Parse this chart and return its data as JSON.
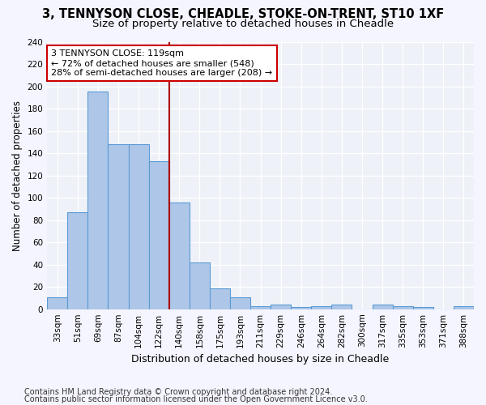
{
  "title1": "3, TENNYSON CLOSE, CHEADLE, STOKE-ON-TRENT, ST10 1XF",
  "title2": "Size of property relative to detached houses in Cheadle",
  "xlabel": "Distribution of detached houses by size in Cheadle",
  "ylabel": "Number of detached properties",
  "categories": [
    "33sqm",
    "51sqm",
    "69sqm",
    "87sqm",
    "104sqm",
    "122sqm",
    "140sqm",
    "158sqm",
    "175sqm",
    "193sqm",
    "211sqm",
    "229sqm",
    "246sqm",
    "264sqm",
    "282sqm",
    "300sqm",
    "317sqm",
    "335sqm",
    "353sqm",
    "371sqm",
    "388sqm"
  ],
  "values": [
    11,
    87,
    195,
    148,
    148,
    133,
    96,
    42,
    19,
    11,
    3,
    4,
    2,
    3,
    4,
    0,
    4,
    3,
    2,
    0,
    3
  ],
  "bar_color": "#aec6e8",
  "bar_edge_color": "#5b9bd5",
  "vline_x": 5.5,
  "vline_color": "#aa0000",
  "annotation_text": "3 TENNYSON CLOSE: 119sqm\n← 72% of detached houses are smaller (548)\n28% of semi-detached houses are larger (208) →",
  "annotation_box_color": "#ffffff",
  "annotation_box_edge": "#cc0000",
  "ylim": [
    0,
    240
  ],
  "yticks": [
    0,
    20,
    40,
    60,
    80,
    100,
    120,
    140,
    160,
    180,
    200,
    220,
    240
  ],
  "footnote1": "Contains HM Land Registry data © Crown copyright and database right 2024.",
  "footnote2": "Contains public sector information licensed under the Open Government Licence v3.0.",
  "bg_color": "#eef2f8",
  "grid_color": "#ffffff",
  "title1_fontsize": 10.5,
  "title2_fontsize": 9.5,
  "xlabel_fontsize": 9,
  "ylabel_fontsize": 8.5,
  "tick_fontsize": 7.5,
  "footnote_fontsize": 7,
  "ann_fontsize": 8
}
